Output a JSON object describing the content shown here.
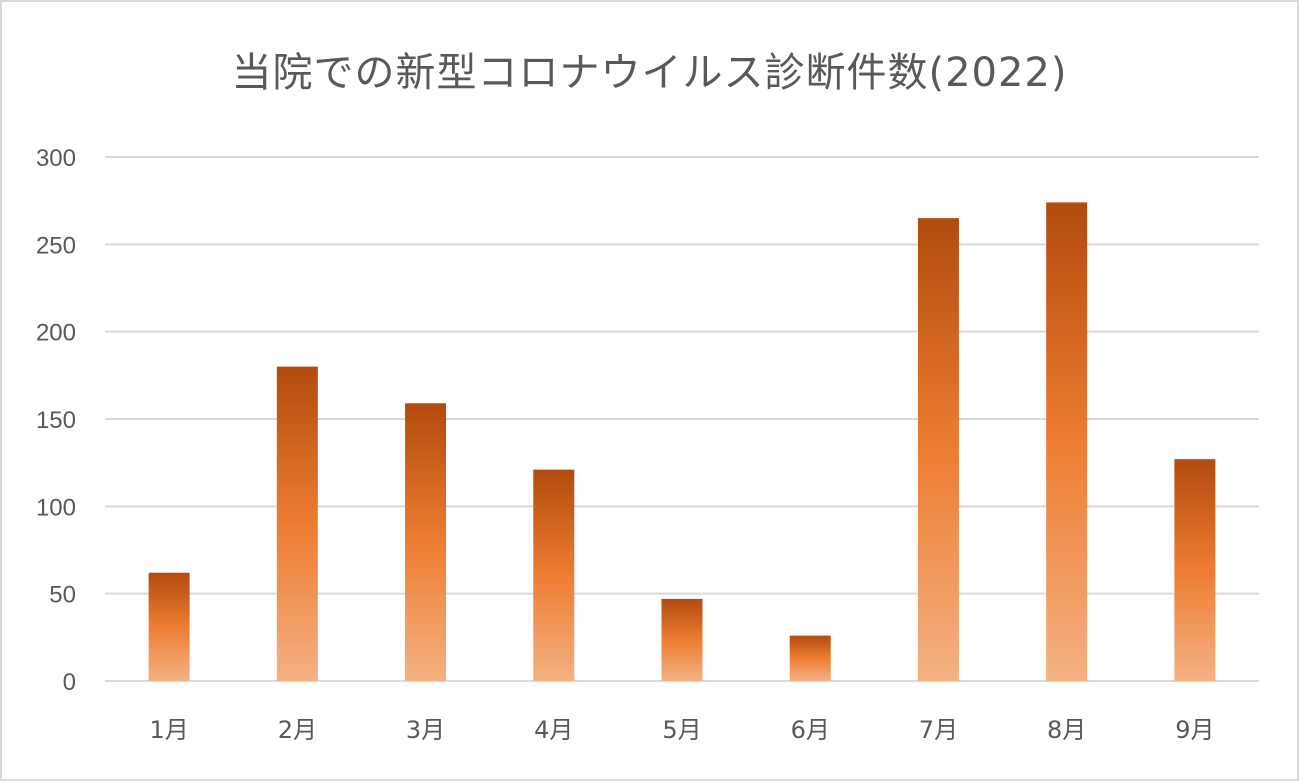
{
  "chart_data": {
    "type": "bar",
    "title": "当院での新型コロナウイルス診断件数(2022)",
    "categories": [
      "1月",
      "2月",
      "3月",
      "4月",
      "5月",
      "6月",
      "7月",
      "8月",
      "9月"
    ],
    "series": [
      {
        "values": [
          62,
          180,
          159,
          121,
          47,
          26,
          265,
          274,
          127
        ]
      }
    ],
    "ylim": [
      0,
      300
    ],
    "yticks": [
      0,
      50,
      100,
      150,
      200,
      250,
      300
    ],
    "grid": true,
    "legend": "none",
    "colors": {
      "bar_top": "#b24b0e",
      "bar_mid": "#ed7d31",
      "bar_bottom": "#f4b183",
      "grid": "#d9d9d9",
      "text": "#595959"
    }
  }
}
